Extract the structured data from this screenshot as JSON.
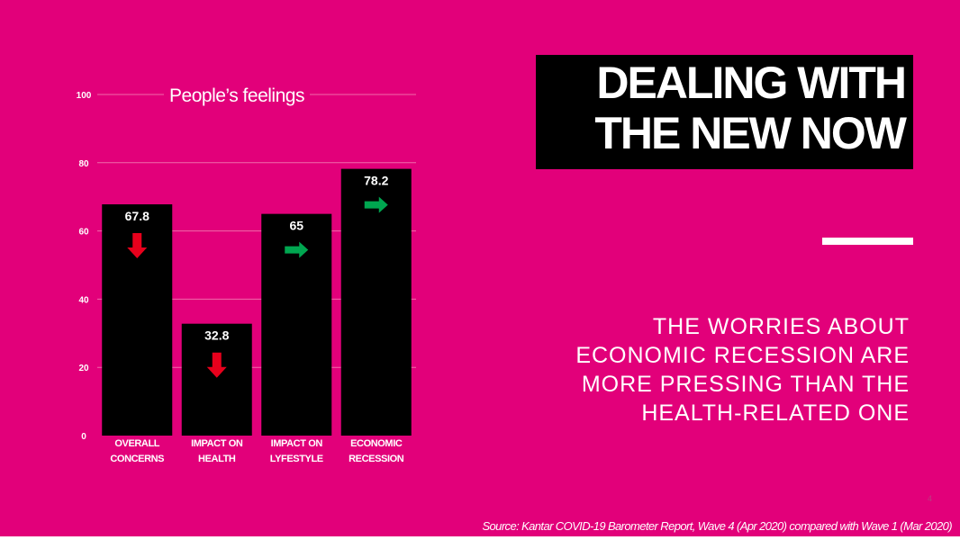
{
  "chart_data": {
    "type": "bar",
    "title": "People’s feelings",
    "categories": [
      [
        "OVERALL",
        "CONCERNS"
      ],
      [
        "IMPACT ON",
        "HEALTH"
      ],
      [
        "IMPACT ON",
        "LYFESTYLE"
      ],
      [
        "ECONOMIC",
        "RECESSION"
      ]
    ],
    "values": [
      67.8,
      32.8,
      65,
      78.2
    ],
    "data_labels": [
      "67.8",
      "32.8",
      "65",
      "78.2"
    ],
    "trend_arrows": [
      "down-arrow-icon",
      "down-arrow-icon",
      "right-arrow-icon",
      "right-arrow-icon"
    ],
    "arrow_colors": {
      "down": "#e8001c",
      "right": "#00a650"
    },
    "bar_color": "#000000",
    "ylim": [
      0,
      100
    ],
    "yticks": [
      0,
      20,
      40,
      60,
      80,
      100
    ],
    "grid": true,
    "legend": "none"
  },
  "slide": {
    "title_lines": [
      "DEALING WITH",
      "THE NEW NOW"
    ],
    "subtitle_lines": [
      "THE WORRIES ABOUT",
      "ECONOMIC RECESSION ARE",
      "MORE PRESSING THAN THE",
      "HEALTH-RELATED ONE"
    ],
    "page_number": "4",
    "source": "Source: Kantar COVID-19 Barometer Report, Wave 4 (Apr 2020) compared with Wave 1 (Mar 2020)"
  },
  "colors": {
    "background": "#e2007a",
    "title_box": "#000000",
    "text": "#ffffff"
  }
}
